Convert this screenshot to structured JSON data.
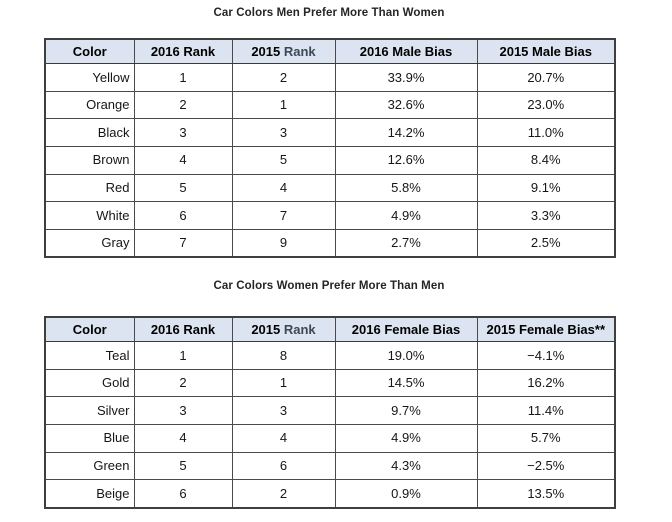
{
  "colors": {
    "header_bg": "#dbe4f0",
    "outer_border": "#3f3f3f",
    "inner_border": "#4a4a4a",
    "title_text": "#252525",
    "cell_text": "#161616",
    "rank_word_accent": "#3d4756"
  },
  "tables": [
    {
      "title": "Car Colors Men Prefer More Than Women",
      "columns": [
        "Color",
        "2016 Rank",
        "2015 Rank",
        "2016 Male Bias",
        "2015 Male Bias"
      ],
      "rows": [
        [
          "Yellow",
          "1",
          "2",
          "33.9%",
          "20.7%"
        ],
        [
          "Orange",
          "2",
          "1",
          "32.6%",
          "23.0%"
        ],
        [
          "Black",
          "3",
          "3",
          "14.2%",
          "11.0%"
        ],
        [
          "Brown",
          "4",
          "5",
          "12.6%",
          "8.4%"
        ],
        [
          "Red",
          "5",
          "4",
          "5.8%",
          "9.1%"
        ],
        [
          "White",
          "6",
          "7",
          "4.9%",
          "3.3%"
        ],
        [
          "Gray",
          "7",
          "9",
          "2.7%",
          "2.5%"
        ]
      ]
    },
    {
      "title": "Car Colors Women Prefer More Than Men",
      "columns": [
        "Color",
        "2016 Rank",
        "2015 Rank",
        "2016 Female Bias",
        "2015 Female Bias**"
      ],
      "rows": [
        [
          "Teal",
          "1",
          "8",
          "19.0%",
          "−4.1%"
        ],
        [
          "Gold",
          "2",
          "1",
          "14.5%",
          "16.2%"
        ],
        [
          "Silver",
          "3",
          "3",
          "9.7%",
          "11.4%"
        ],
        [
          "Blue",
          "4",
          "4",
          "4.9%",
          "5.7%"
        ],
        [
          "Green",
          "5",
          "6",
          "4.3%",
          "−2.5%"
        ],
        [
          "Beige",
          "6",
          "2",
          "0.9%",
          "13.5%"
        ]
      ]
    }
  ]
}
